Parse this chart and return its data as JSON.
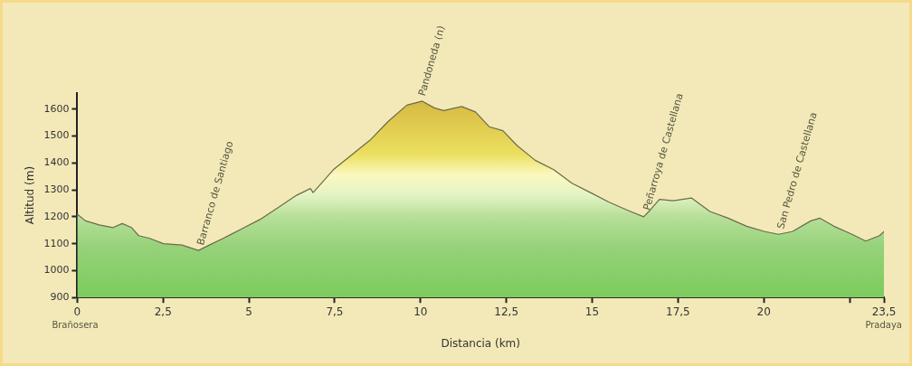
{
  "chart_data": {
    "type": "area",
    "xlabel": "Distancia (km)",
    "ylabel": "Altitud (m)",
    "x": [
      0,
      0.24,
      0.64,
      1.04,
      1.31,
      1.58,
      1.79,
      2.11,
      2.51,
      3.05,
      3.53,
      3.85,
      4.25,
      4.79,
      5.32,
      5.86,
      6.39,
      6.79,
      6.87,
      7.46,
      7.99,
      8.53,
      9.06,
      9.6,
      10.05,
      10.4,
      10.67,
      11.2,
      11.6,
      12.0,
      12.4,
      12.81,
      13.34,
      13.88,
      14.41,
      14.95,
      15.48,
      16.02,
      16.5,
      16.69,
      16.96,
      17.36,
      17.89,
      18.43,
      18.96,
      19.5,
      20.03,
      20.43,
      20.83,
      21.37,
      21.64,
      22.04,
      22.57,
      22.97,
      23.37,
      23.5
    ],
    "series": [
      {
        "color": "#6b6b4a",
        "values": [
          1210,
          1185,
          1170,
          1160,
          1175,
          1160,
          1130,
          1120,
          1100,
          1095,
          1075,
          1095,
          1120,
          1155,
          1190,
          1235,
          1280,
          1305,
          1290,
          1375,
          1430,
          1485,
          1555,
          1615,
          1630,
          1605,
          1595,
          1610,
          1590,
          1535,
          1520,
          1465,
          1410,
          1375,
          1325,
          1290,
          1255,
          1225,
          1200,
          1225,
          1265,
          1260,
          1270,
          1220,
          1195,
          1165,
          1145,
          1135,
          1145,
          1185,
          1195,
          1165,
          1135,
          1110,
          1130,
          1145
        ]
      }
    ],
    "xlim": [
      0,
      23.5
    ],
    "ylim": [
      900,
      1660
    ],
    "xticks": [
      0,
      {
        "value": 2.5,
        "label": "2,5"
      },
      5,
      {
        "value": 7.5,
        "label": "7,5"
      },
      10,
      {
        "value": 12.5,
        "label": "12,5"
      },
      15,
      {
        "value": 17.5,
        "label": "17,5"
      },
      20,
      {
        "value": 22.5,
        "label": null
      },
      {
        "value": 23.5,
        "label": "23,5"
      }
    ],
    "yticks": [
      900,
      1000,
      1100,
      1200,
      1300,
      1400,
      1500,
      1600
    ],
    "grid": false,
    "legend": false,
    "marker": "none",
    "line_style": "solid",
    "annotations": [
      {
        "text": "Barranco de Santiago",
        "x": 3.6,
        "y": 1075
      },
      {
        "text": "Pandoneda (n)",
        "x": 10.05,
        "y": 1630
      },
      {
        "text": "Peñarroya de Castellana",
        "x": 16.6,
        "y": 1205
      },
      {
        "text": "San Pedro de Castellana",
        "x": 20.5,
        "y": 1135
      },
      "Brañosera",
      "Pradaya"
    ]
  }
}
